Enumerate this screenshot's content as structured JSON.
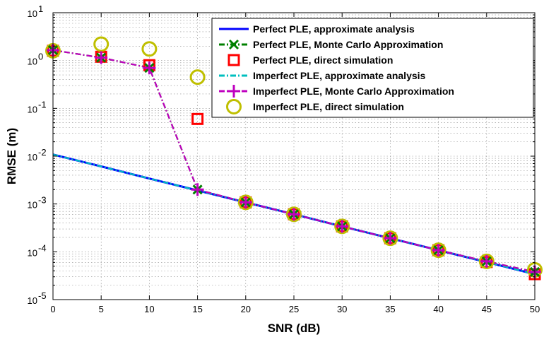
{
  "chart_data": {
    "type": "line",
    "title": "",
    "xlabel": "SNR (dB)",
    "ylabel": "RMSE (m)",
    "xlim": [
      0,
      50
    ],
    "ylim": [
      1e-05,
      10
    ],
    "yscale": "log",
    "grid": true,
    "legend_position": "top-right",
    "x_ticks": [
      "0",
      "5",
      "10",
      "15",
      "20",
      "25",
      "30",
      "35",
      "40",
      "45",
      "50"
    ],
    "y_ticks": [
      {
        "base": "10",
        "exp": "-5"
      },
      {
        "base": "10",
        "exp": "-4"
      },
      {
        "base": "10",
        "exp": "-3"
      },
      {
        "base": "10",
        "exp": "-2"
      },
      {
        "base": "10",
        "exp": "-1"
      },
      {
        "base": "10",
        "exp": "0"
      },
      {
        "base": "10",
        "exp": "1"
      }
    ],
    "series": [
      {
        "name": "Perfect PLE, approximate analysis",
        "color": "#0000ff",
        "style": "solid",
        "marker": "none",
        "x": [
          0,
          5,
          10,
          15,
          20,
          25,
          30,
          35,
          40,
          45,
          50
        ],
        "y": [
          0.0108,
          0.0061,
          0.0034,
          0.00192,
          0.00108,
          0.00061,
          0.00034,
          0.000192,
          0.000108,
          6.1e-05,
          3.4e-05
        ]
      },
      {
        "name": "Perfect PLE, Monte Carlo Approximation",
        "color": "#008000",
        "style": "dashdot",
        "marker": "x",
        "x": [
          0,
          5,
          10,
          15,
          20,
          25,
          30,
          35,
          40,
          45,
          50
        ],
        "y": [
          1.65,
          1.15,
          0.7,
          0.002,
          0.00108,
          0.00061,
          0.00034,
          0.000192,
          0.000108,
          6.3e-05,
          3.8e-05
        ]
      },
      {
        "name": "Perfect PLE, direct simulation",
        "color": "#ff0000",
        "style": "none",
        "marker": "square",
        "x": [
          0,
          5,
          10,
          15,
          20,
          25,
          30,
          35,
          40,
          45,
          50
        ],
        "y": [
          1.6,
          1.2,
          0.8,
          0.06,
          0.00108,
          0.00061,
          0.00034,
          0.000192,
          0.000108,
          6.1e-05,
          3.4e-05
        ]
      },
      {
        "name": "Imperfect PLE, approximate analysis",
        "color": "#00bfbf",
        "style": "dashdot",
        "marker": "none",
        "x": [
          0,
          5,
          10,
          15,
          20,
          25,
          30,
          35,
          40,
          45,
          50
        ],
        "y": [
          0.0108,
          0.0061,
          0.0034,
          0.00192,
          0.00108,
          0.00061,
          0.00034,
          0.000192,
          0.000108,
          6.1e-05,
          3.4e-05
        ]
      },
      {
        "name": "Imperfect PLE, Monte Carlo Approximation",
        "color": "#bf00bf",
        "style": "dashdot",
        "marker": "plus",
        "x": [
          0,
          5,
          10,
          15,
          20,
          25,
          30,
          35,
          40,
          45,
          50
        ],
        "y": [
          1.65,
          1.15,
          0.7,
          0.002,
          0.00108,
          0.00061,
          0.00034,
          0.000192,
          0.000108,
          6.3e-05,
          3.8e-05
        ]
      },
      {
        "name": "Imperfect PLE, direct simulation",
        "color": "#bfbf00",
        "style": "none",
        "marker": "circle",
        "x": [
          0,
          5,
          10,
          15,
          20,
          25,
          30,
          35,
          40,
          45,
          50
        ],
        "y": [
          1.6,
          2.2,
          1.75,
          0.45,
          0.00108,
          0.00061,
          0.00034,
          0.000192,
          0.000108,
          6.3e-05,
          4.2e-05
        ]
      }
    ]
  }
}
